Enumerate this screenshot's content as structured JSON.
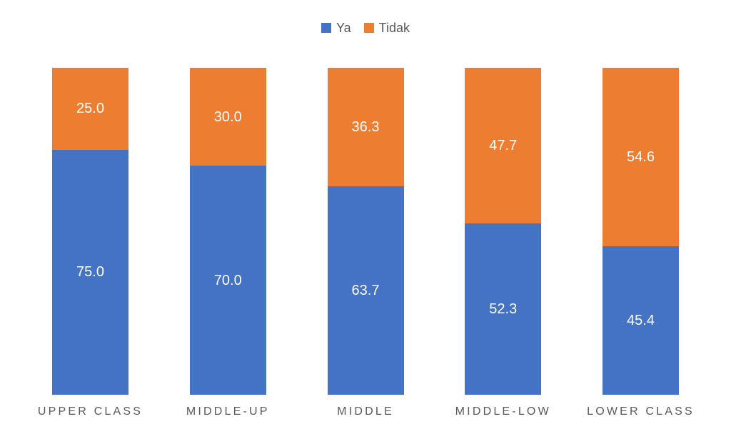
{
  "chart_data": {
    "type": "bar",
    "subtype": "stacked-100-percent",
    "orientation": "vertical",
    "title": "",
    "xlabel": "",
    "ylabel": "",
    "ylim": [
      0,
      100
    ],
    "grid": false,
    "axes_visible": false,
    "legend_position": "top-center",
    "categories": [
      "UPPER CLASS",
      "MIDDLE-UP",
      "MIDDLE",
      "MIDDLE-LOW",
      "LOWER CLASS"
    ],
    "series": [
      {
        "name": "Ya",
        "color": "#4472C4",
        "stack_order": "bottom",
        "values": [
          75.0,
          70.0,
          63.7,
          52.3,
          45.4
        ],
        "labels": [
          "75.0",
          "70.0",
          "63.7",
          "52.3",
          "45.4"
        ]
      },
      {
        "name": "Tidak",
        "color": "#ED7D31",
        "stack_order": "top",
        "values": [
          25.0,
          30.0,
          36.3,
          47.7,
          54.6
        ],
        "labels": [
          "25.0",
          "30.0",
          "36.3",
          "47.7",
          "54.6"
        ]
      }
    ],
    "data_label_color": "#FFFFFF",
    "category_label_color": "#595959"
  }
}
